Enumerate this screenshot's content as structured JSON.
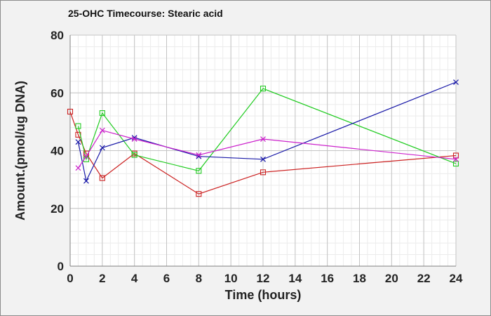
{
  "chart_data": {
    "type": "line",
    "title": "25-OHC Timecourse: Stearic acid",
    "xlabel": "Time (hours)",
    "ylabel": "Amount.(pmol/ug DNA)",
    "xlim": [
      0,
      24
    ],
    "ylim": [
      0,
      80
    ],
    "x_ticks": [
      0,
      2,
      4,
      6,
      8,
      10,
      12,
      14,
      16,
      18,
      20,
      22,
      24
    ],
    "y_ticks": [
      0,
      20,
      40,
      60,
      80
    ],
    "x_minor_step": 0.5,
    "y_minor_step": 4,
    "grid": true,
    "legend": "none",
    "series": [
      {
        "color": "#cc2222",
        "marker": "square",
        "x": [
          0,
          0.5,
          1,
          2,
          4,
          8,
          12,
          24
        ],
        "y": [
          53.5,
          45.5,
          39,
          30.5,
          39,
          25,
          32.5,
          38.3
        ]
      },
      {
        "color": "#22cc22",
        "marker": "square",
        "x": [
          0.5,
          1,
          2,
          4,
          8,
          12,
          24
        ],
        "y": [
          48.5,
          37,
          53,
          38.5,
          33,
          61.5,
          35.5
        ]
      },
      {
        "color": "#1a1aa8",
        "marker": "x",
        "x": [
          0.5,
          1,
          2,
          4,
          8,
          12,
          24
        ],
        "y": [
          43,
          29.5,
          41,
          44.5,
          38,
          37,
          63.7
        ]
      },
      {
        "color": "#cc22cc",
        "marker": "x",
        "x": [
          0.5,
          1,
          2,
          4,
          8,
          12,
          24
        ],
        "y": [
          34,
          38,
          47,
          44,
          38.5,
          44,
          37
        ]
      }
    ]
  }
}
